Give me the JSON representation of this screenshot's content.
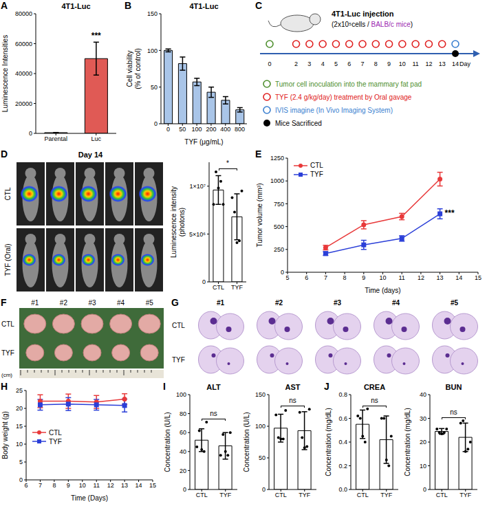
{
  "chart_data": [
    {
      "panel": "A",
      "type": "bar",
      "title": "4T1-Luc",
      "ylabel": "Luminescence Intensities",
      "categories": [
        "Parental",
        "Luc"
      ],
      "values": [
        500,
        50000
      ],
      "errors": [
        100,
        11000
      ],
      "colors": [
        "#ffffff",
        "#e05a55"
      ],
      "ylim": [
        0,
        80000
      ],
      "yticks": [
        0,
        20000,
        40000,
        60000,
        80000
      ],
      "annotation": {
        "text": "***",
        "category": "Luc"
      }
    },
    {
      "panel": "B",
      "type": "bar",
      "title": "4T1-Luc",
      "xlabel": "TYF (μg/mL)",
      "ylabel": "Cell viability (% of control)",
      "categories": [
        "0",
        "50",
        "100",
        "200",
        "400",
        "800"
      ],
      "values": [
        100,
        82,
        57,
        43,
        32,
        19
      ],
      "errors": [
        2,
        9,
        5,
        7,
        5,
        3
      ],
      "color": "#a9c5e8",
      "ylim": [
        0,
        150
      ],
      "yticks": [
        0,
        50,
        100,
        150
      ]
    },
    {
      "type": "bar",
      "ylabel": "Luminescence intensity (photons)",
      "categories": [
        "CTL",
        "TYF"
      ],
      "values": [
        9600000,
        6800000
      ],
      "errors": [
        1500000,
        2400000
      ],
      "points": [
        [
          8100000,
          11500000,
          9800000,
          10500000,
          8100000
        ],
        [
          8800000,
          7300000,
          4100000,
          4300000,
          9500000
        ]
      ],
      "color": "#ffffff",
      "ylim": [
        0,
        12500000
      ],
      "yticks": [
        0,
        {
          "value": 5000000,
          "label": "5×10⁶"
        },
        {
          "value": 10000000,
          "label": "1×10⁷"
        }
      ],
      "annotation": {
        "text": "*"
      }
    },
    {
      "panel": "E",
      "type": "line",
      "xlabel": "Time (days)",
      "ylabel": "Tumor volume (mm³)",
      "x": [
        7,
        9,
        11,
        13
      ],
      "series": [
        {
          "name": "CTL",
          "color": "#e8393a",
          "marker": "circle",
          "values": [
            270,
            520,
            610,
            1020
          ],
          "errors": [
            25,
            45,
            35,
            75
          ]
        },
        {
          "name": "TYF",
          "color": "#2b3fd8",
          "marker": "square",
          "values": [
            205,
            300,
            370,
            640
          ],
          "errors": [
            20,
            50,
            30,
            55
          ]
        }
      ],
      "xlim": [
        5,
        15
      ],
      "xticks": [
        5,
        6,
        7,
        8,
        9,
        10,
        11,
        12,
        13,
        14,
        15
      ],
      "ylim": [
        0,
        1250
      ],
      "yticks": [
        0,
        250,
        500,
        750,
        1000,
        1250
      ],
      "legend": "upper left",
      "annotation": {
        "text": "***"
      }
    },
    {
      "panel": "H",
      "type": "line",
      "xlabel": "Time (Days)",
      "ylabel": "Body weight (g)",
      "x": [
        7,
        9,
        11,
        13
      ],
      "series": [
        {
          "name": "CTL",
          "color": "#e8393a",
          "marker": "circle",
          "values": [
            22,
            22,
            21.8,
            22.6
          ],
          "errors": [
            1.8,
            2,
            1.8,
            1.5
          ]
        },
        {
          "name": "TYF",
          "color": "#2b3fd8",
          "marker": "square",
          "values": [
            21,
            21.2,
            21,
            20.8
          ],
          "errors": [
            1.5,
            1.8,
            1.5,
            1.8
          ]
        }
      ],
      "xlim": [
        6,
        15
      ],
      "xticks": [
        6,
        7,
        8,
        9,
        10,
        11,
        12,
        13,
        14,
        15
      ],
      "ylim": [
        0,
        25
      ],
      "yticks": [
        0,
        5,
        10,
        15,
        20,
        25
      ],
      "legend": "center left"
    },
    {
      "panel": "I",
      "type": "bar",
      "title": "ALT",
      "ylabel": "Concentration (U/L)",
      "categories": [
        "CTL",
        "TYF"
      ],
      "values": [
        52,
        46
      ],
      "errors": [
        12,
        14
      ],
      "points": [
        [
          45,
          62,
          42,
          40,
          71
        ],
        [
          36,
          58,
          40,
          36,
          60
        ]
      ],
      "color": "#ffffff",
      "ylim": [
        0,
        100
      ],
      "yticks": [
        0,
        20,
        40,
        60,
        80,
        100
      ],
      "annotation": {
        "text": "ns"
      }
    },
    {
      "type": "bar",
      "title": "AST",
      "ylabel": "Concentration (U/L)",
      "categories": [
        "CTL",
        "TYF"
      ],
      "values": [
        97,
        93
      ],
      "errors": [
        22,
        30
      ],
      "points": [
        [
          118,
          82,
          80,
          80,
          125
        ],
        [
          122,
          82,
          66,
          68,
          127
        ]
      ],
      "color": "#ffffff",
      "ylim": [
        0,
        150
      ],
      "yticks": [
        0,
        50,
        100,
        150
      ],
      "annotation": {
        "text": "ns"
      }
    },
    {
      "panel": "J",
      "type": "bar",
      "title": "CREA",
      "ylabel": "Concentration (mg/dL)",
      "categories": [
        "CTL",
        "TYF"
      ],
      "values": [
        0.55,
        0.42
      ],
      "errors": [
        0.12,
        0.2
      ],
      "points": [
        [
          0.62,
          0.6,
          0.45,
          0.4,
          0.68
        ],
        [
          0.6,
          0.6,
          0.25,
          0.2,
          0.45
        ]
      ],
      "color": "#ffffff",
      "ylim": [
        0,
        0.8
      ],
      "yticks": [
        {
          "value": 0,
          "label": "0.0"
        },
        0.2,
        0.4,
        0.6,
        0.8
      ],
      "annotation": {
        "text": "ns"
      }
    },
    {
      "type": "bar",
      "title": "BUN",
      "ylabel": "Concentration (mg/dL)",
      "categories": [
        "CTL",
        "TYF"
      ],
      "values": [
        24.5,
        22
      ],
      "errors": [
        1.2,
        6
      ],
      "points": [
        [
          25.5,
          24,
          23.5,
          24,
          25.5
        ],
        [
          28,
          29,
          16,
          17,
          20
        ]
      ],
      "color": "#ffffff",
      "ylim": [
        0,
        40
      ],
      "yticks": [
        0,
        10,
        20,
        30,
        40
      ],
      "annotation": {
        "text": "ns"
      }
    }
  ],
  "diagram": {
    "panel": "C",
    "title": "4T1-Luc injection",
    "subtitle": [
      {
        "text": "(2x10⁵cells / ",
        "color": "#000000"
      },
      {
        "text": "BALB/c mice",
        "color": "#9b1fb0"
      },
      {
        "text": ")",
        "color": "#000000"
      }
    ],
    "days": [
      0,
      2,
      3,
      4,
      5,
      6,
      7,
      8,
      9,
      10,
      11,
      12,
      13,
      14
    ],
    "day_label": "Day",
    "events": [
      {
        "text": "Tumor cell inoculation into the mammary fat pad",
        "color": "#4f8f2f",
        "marker": "open",
        "days": [
          0
        ]
      },
      {
        "text": "TYF (2.4 g/kg/day) treatment by Oral gavage",
        "color": "#e02020",
        "marker": "open",
        "days": [
          2,
          3,
          4,
          5,
          6,
          7,
          8,
          9,
          10,
          11,
          12,
          13
        ]
      },
      {
        "text": "IVIS imagine (In Vivo Imaging System)",
        "color": "#3a7fd0",
        "marker": "open",
        "days": [
          14
        ]
      },
      {
        "text": "Mice Sacrificed",
        "color": "#000000",
        "marker": "filled",
        "days": [
          14
        ]
      }
    ]
  },
  "images": [
    {
      "panel": "D",
      "header": "Day 14",
      "rows": [
        "CTL",
        "TYF (Oral)"
      ]
    },
    {
      "panel": "F",
      "rows": [
        "CTL",
        "TYF"
      ],
      "labels": [
        "#1",
        "#2",
        "#3",
        "#4",
        "#5"
      ],
      "scale_label": "(cm)"
    },
    {
      "panel": "G",
      "rows": [
        "CTL",
        "TYF"
      ],
      "labels": [
        "#1",
        "#2",
        "#3",
        "#4",
        "#5"
      ]
    }
  ]
}
